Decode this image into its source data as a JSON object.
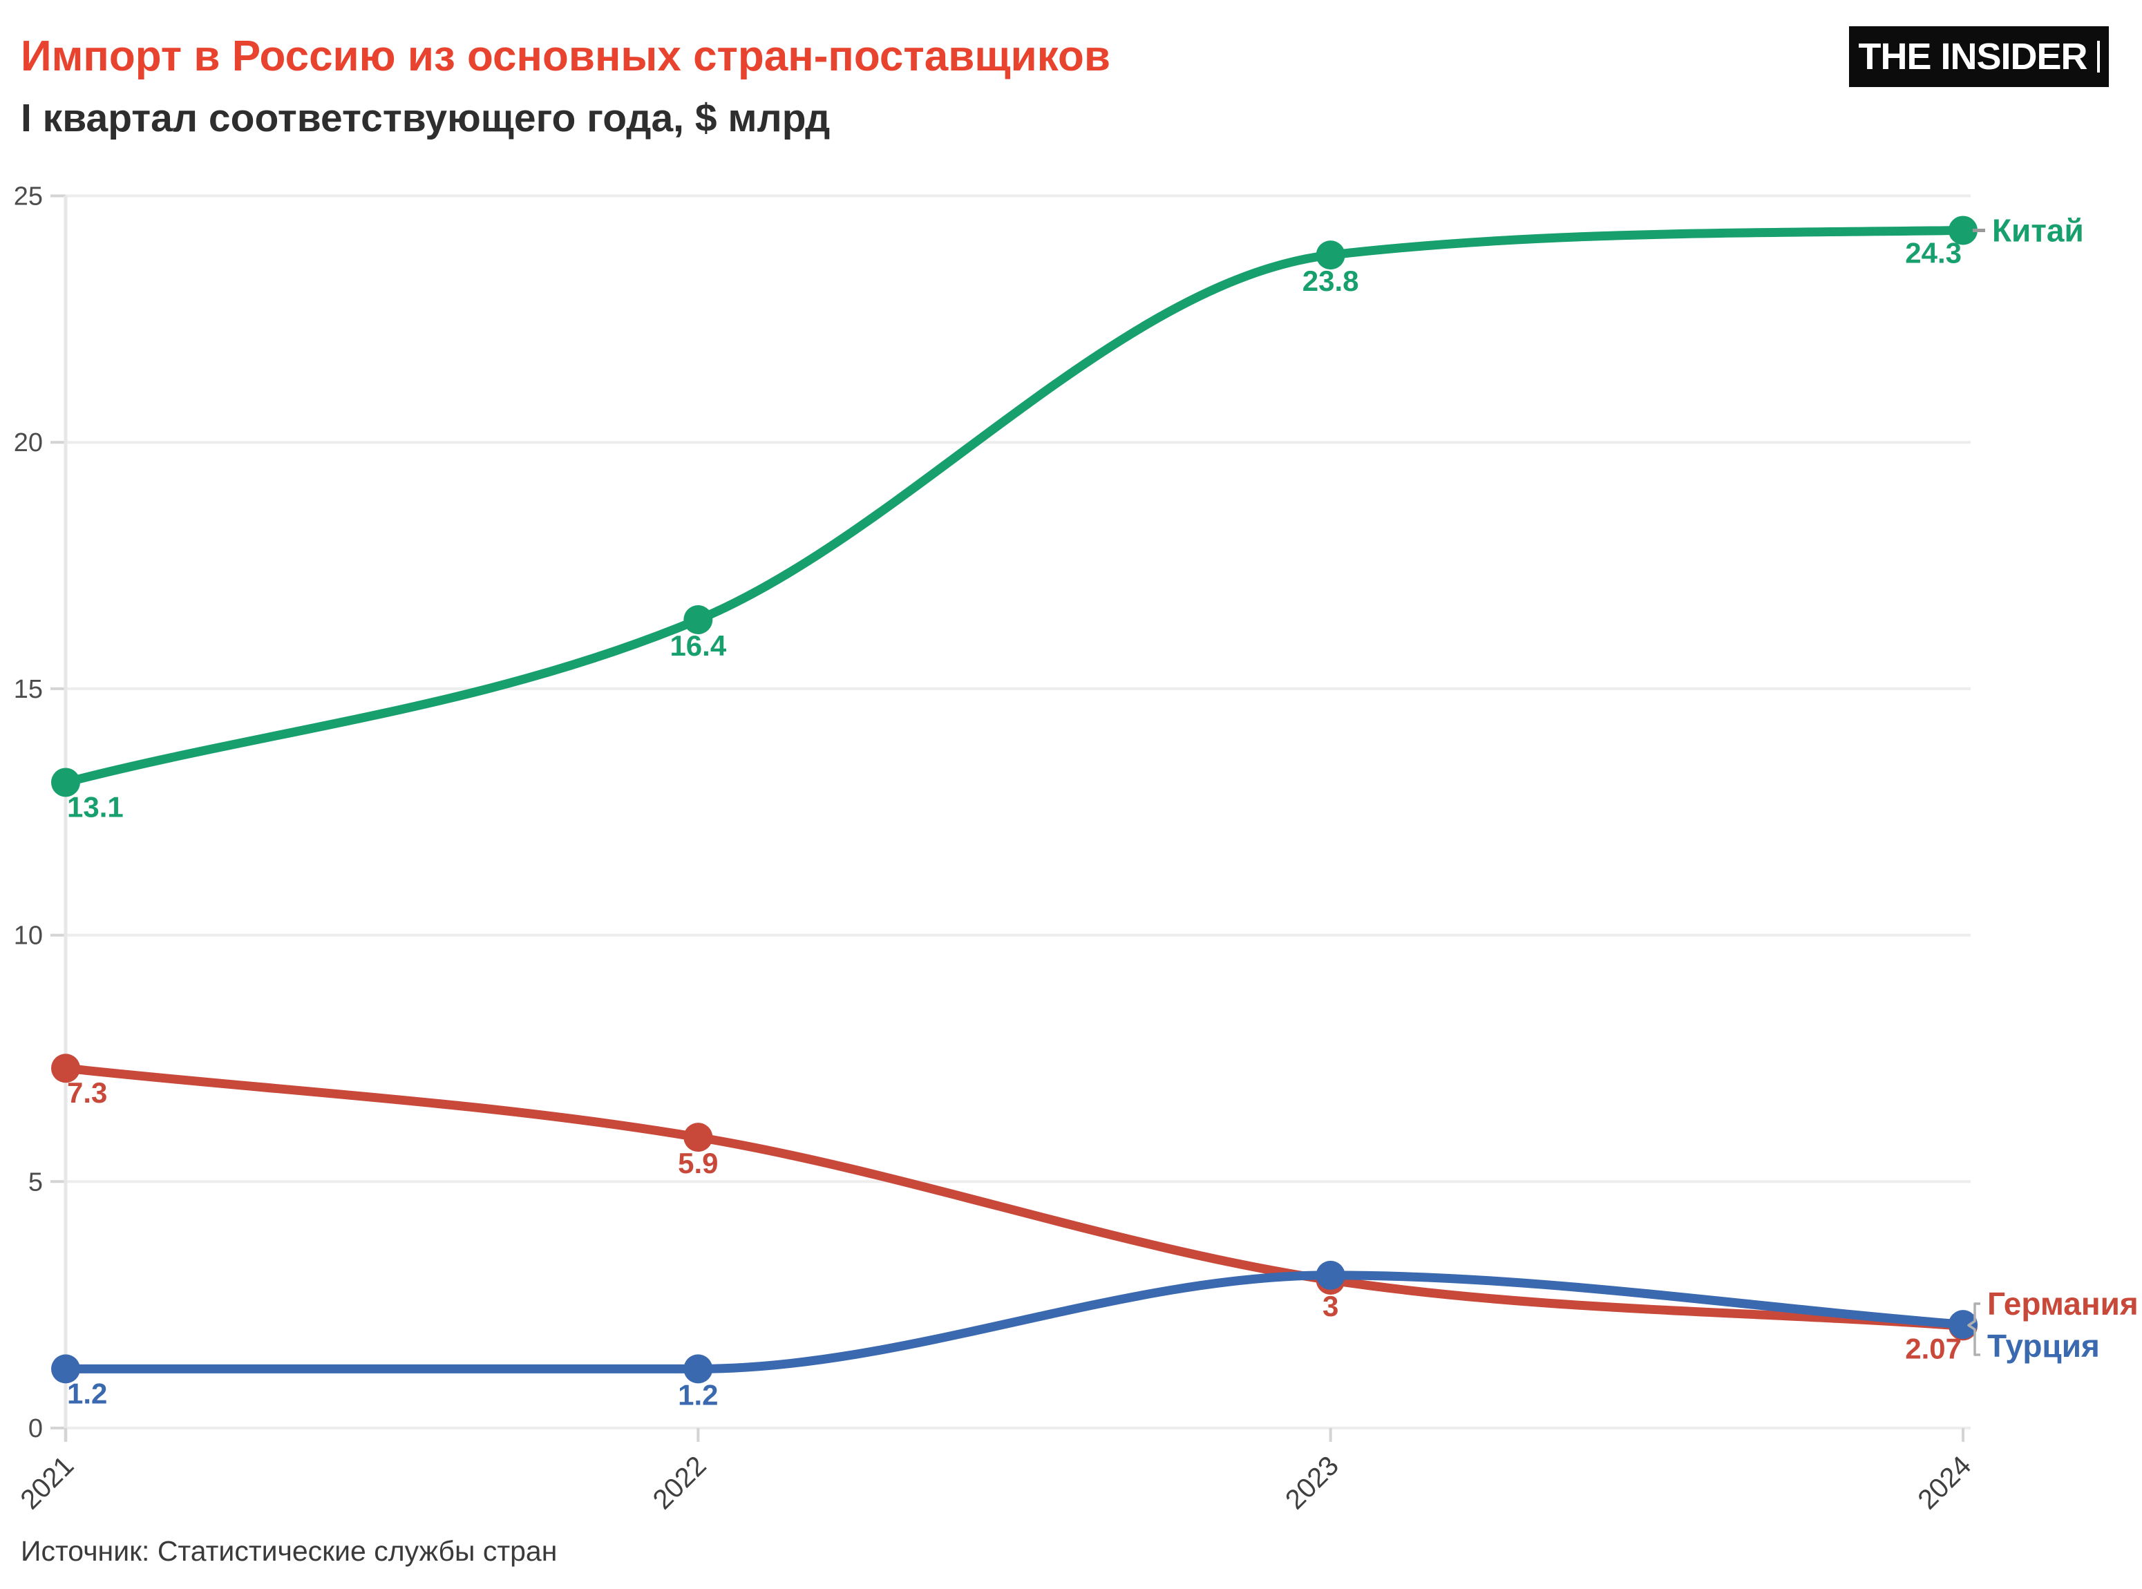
{
  "header": {
    "title": "Импорт в Россию из основных стран-поставщиков",
    "subtitle": "I квартал соответствующего года, $ млрд"
  },
  "logo": {
    "text": "THE INSIDER"
  },
  "source": "Источник: Статистические службы стран",
  "colors": {
    "title_red": "#e8432e",
    "china_green": "#17a06e",
    "germany_red": "#c8493a",
    "turkey_blue": "#3a69af",
    "gridline": "#ededed",
    "axis_line": "#e7e7e7",
    "tick": "#d4d4d4",
    "y_tick_text": "#4c4c4c",
    "x_tick_text": "#3f3f3f",
    "bracket": "#b0b0b0",
    "dash": "#999999"
  },
  "chart_data": {
    "type": "line",
    "x": [
      "2021",
      "2022",
      "2023",
      "2024"
    ],
    "ylim": [
      0,
      25
    ],
    "y_ticks": [
      0,
      5,
      10,
      15,
      20,
      25
    ],
    "grid": "horizontal",
    "legend_position": "right-end-labels",
    "series": [
      {
        "id": "china",
        "name": "Китай",
        "color": "#17a06e",
        "values": [
          13.1,
          16.4,
          23.8,
          24.3
        ],
        "labels": [
          "13.1",
          "16.4",
          "23.8",
          "24.3"
        ]
      },
      {
        "id": "germany",
        "name": "Германия",
        "color": "#c8493a",
        "values": [
          7.3,
          5.9,
          3,
          2.07
        ],
        "labels": [
          "7.3",
          "5.9",
          "3",
          "2.07"
        ]
      },
      {
        "id": "turkey",
        "name": "Турция",
        "color": "#3a69af",
        "values": [
          1.2,
          1.2,
          3.1,
          2.1
        ],
        "labels": [
          "1.2",
          "1.2",
          null,
          null
        ]
      }
    ]
  }
}
